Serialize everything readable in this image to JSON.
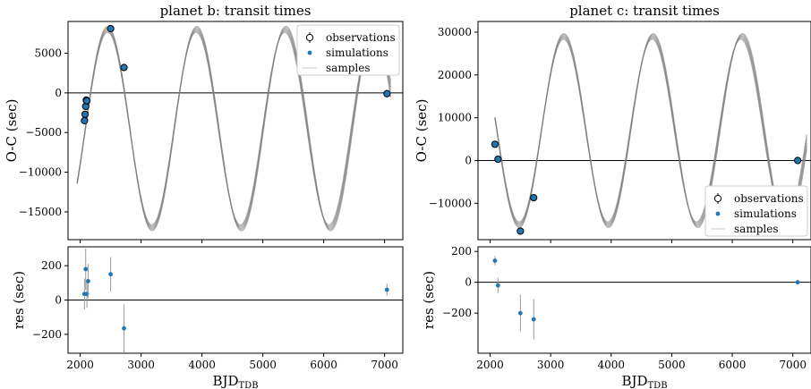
{
  "chart_data": [
    {
      "type": "line",
      "panel": "top-left",
      "title": "planet b: transit times",
      "xlabel": "",
      "ylabel": "O-C (sec)",
      "xlim": [
        1800,
        7300
      ],
      "ylim": [
        -18500,
        9000
      ],
      "xticks": [
        2000,
        3000,
        4000,
        5000,
        6000,
        7000
      ],
      "yticks": [
        -15000,
        -10000,
        -5000,
        0,
        5000
      ],
      "ytick_labels": [
        "−15000",
        "−10000",
        "−5000",
        "0",
        "5000"
      ],
      "legend": {
        "entries": [
          "observations",
          "simulations",
          "samples"
        ],
        "placement": "top-right"
      },
      "curve": {
        "x0": 1950,
        "mid": -4500,
        "amp": 12500,
        "period": 1460,
        "phase_x": 2450,
        "sign": 1,
        "upper_end": 7100,
        "start_offset": 0
      },
      "series": [
        {
          "name": "observations",
          "x": [
            2070,
            2080,
            2090,
            2100,
            2110,
            2500,
            2720,
            7040
          ],
          "y": [
            -3500,
            -2700,
            -1700,
            -900,
            -1000,
            8100,
            3200,
            -100
          ]
        }
      ]
    },
    {
      "type": "scatter",
      "panel": "bottom-left",
      "xlabel": "BJD",
      "xlabel_sub": "TDB",
      "ylabel": "res (sec)",
      "xlim": [
        1800,
        7300
      ],
      "ylim": [
        -310,
        310
      ],
      "xticks": [
        2000,
        3000,
        4000,
        5000,
        6000,
        7000
      ],
      "yticks": [
        -200,
        0,
        200
      ],
      "ytick_labels": [
        "−200",
        "0",
        "200"
      ],
      "series": [
        {
          "name": "simulations",
          "x": [
            2070,
            2090,
            2110,
            2130,
            2500,
            2720,
            7040
          ],
          "y": [
            35,
            180,
            35,
            110,
            150,
            -165,
            60
          ],
          "err": [
            90,
            120,
            80,
            100,
            100,
            140,
            35
          ]
        }
      ]
    },
    {
      "type": "line",
      "panel": "top-right",
      "title": "planet c: transit times",
      "xlabel": "",
      "ylabel": "O-C (sec)",
      "xlim": [
        1800,
        7300
      ],
      "ylim": [
        -18500,
        32500
      ],
      "xticks": [
        2000,
        3000,
        4000,
        5000,
        6000,
        7000
      ],
      "yticks": [
        -10000,
        0,
        10000,
        20000,
        30000
      ],
      "ytick_labels": [
        "−10000",
        "0",
        "10000",
        "20000",
        "30000"
      ],
      "legend": {
        "entries": [
          "observations",
          "simulations",
          "samples"
        ],
        "placement": "lower-right"
      },
      "curve": {
        "x0": 2080,
        "mid": 7000,
        "amp": 22000,
        "period": 1470,
        "phase_x": 2480,
        "sign": -1,
        "upper_end": 7230,
        "start_offset": 0
      },
      "series": [
        {
          "name": "observations",
          "x": [
            2080,
            2130,
            2500,
            2720,
            7080
          ],
          "y": [
            3800,
            300,
            -16500,
            -8700,
            0
          ]
        }
      ]
    },
    {
      "type": "scatter",
      "panel": "bottom-right",
      "xlabel": "BJD",
      "xlabel_sub": "TDB",
      "ylabel": "res (sec)",
      "xlim": [
        1800,
        7300
      ],
      "ylim": [
        -460,
        230
      ],
      "xticks": [
        2000,
        3000,
        4000,
        5000,
        6000,
        7000
      ],
      "yticks": [
        -200,
        0,
        200
      ],
      "ytick_labels": [
        "−200",
        "0",
        "200"
      ],
      "series": [
        {
          "name": "simulations",
          "x": [
            2080,
            2130,
            2500,
            2720,
            7080
          ],
          "y": [
            140,
            -20,
            -200,
            -240,
            0
          ],
          "err": [
            30,
            50,
            120,
            130,
            15
          ]
        }
      ]
    }
  ],
  "colors": {
    "sim": "#1f77b4",
    "samples": "#808080",
    "err": "#999999",
    "frame": "#000000"
  }
}
